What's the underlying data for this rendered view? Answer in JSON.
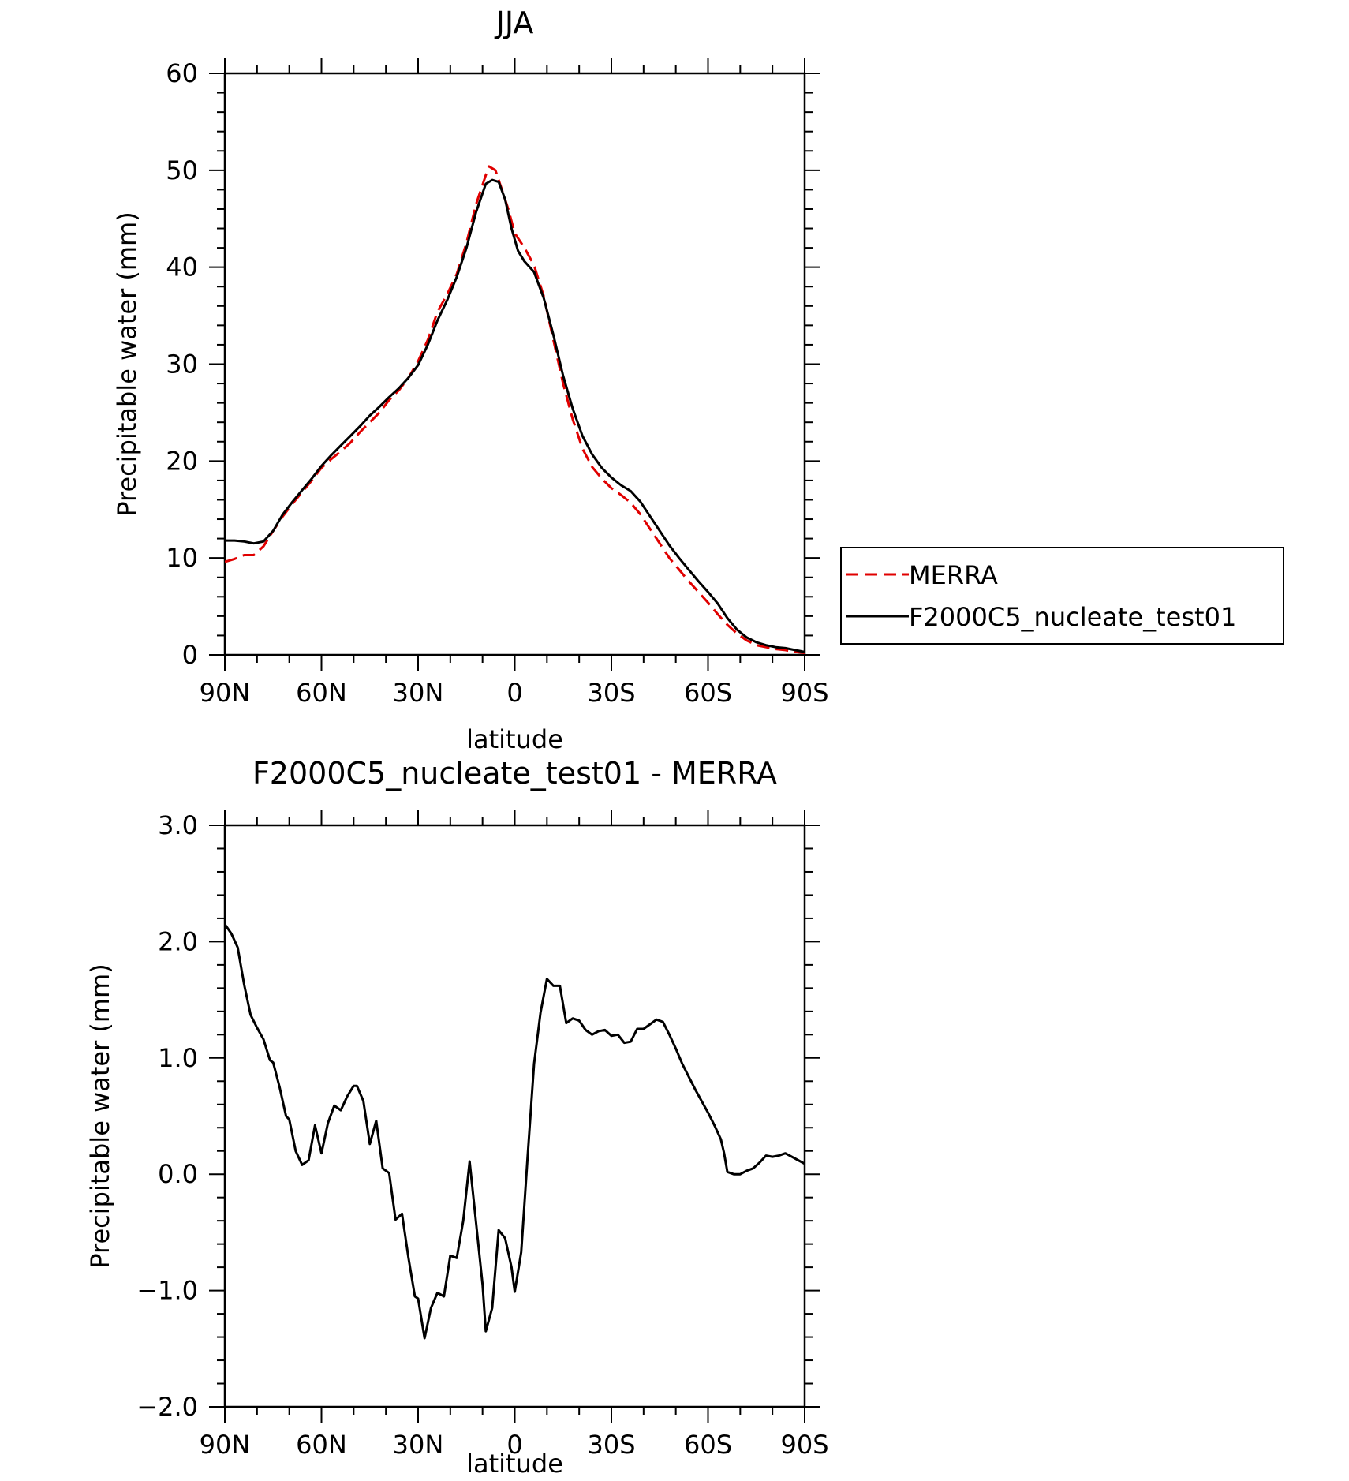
{
  "chart_data": [
    {
      "type": "line",
      "title": "JJA",
      "xlabel": "latitude",
      "ylabel": "Precipitable water (mm)",
      "xlim": [
        90,
        -90
      ],
      "ylim": [
        0,
        60
      ],
      "xticks": [
        {
          "value": 90,
          "label": "90N"
        },
        {
          "value": 60,
          "label": "60N"
        },
        {
          "value": 30,
          "label": "30N"
        },
        {
          "value": 0,
          "label": "0"
        },
        {
          "value": -30,
          "label": "30S"
        },
        {
          "value": -60,
          "label": "60S"
        },
        {
          "value": -90,
          "label": "90S"
        }
      ],
      "yticks": [
        {
          "value": 0,
          "label": "0"
        },
        {
          "value": 10,
          "label": "10"
        },
        {
          "value": 20,
          "label": "20"
        },
        {
          "value": 30,
          "label": "30"
        },
        {
          "value": 40,
          "label": "40"
        },
        {
          "value": 50,
          "label": "50"
        },
        {
          "value": 60,
          "label": "60"
        }
      ],
      "legend_position": "right",
      "series": [
        {
          "name": "MERRA",
          "color": "#e00000",
          "dash": "dashed",
          "points": [
            [
              90,
              9.6
            ],
            [
              87,
              9.9
            ],
            [
              84,
              10.3
            ],
            [
              81,
              10.3
            ],
            [
              78,
              11.2
            ],
            [
              75,
              12.8
            ],
            [
              72,
              14.3
            ],
            [
              69,
              15.6
            ],
            [
              66,
              16.8
            ],
            [
              63,
              18.0
            ],
            [
              60,
              19.3
            ],
            [
              57,
              20.2
            ],
            [
              54,
              21.0
            ],
            [
              51,
              21.9
            ],
            [
              48,
              23.0
            ],
            [
              45,
              24.0
            ],
            [
              42,
              25.0
            ],
            [
              39,
              26.3
            ],
            [
              36,
              27.3
            ],
            [
              33,
              28.6
            ],
            [
              30,
              30.3
            ],
            [
              27,
              32.5
            ],
            [
              24,
              35.4
            ],
            [
              21,
              37.2
            ],
            [
              18,
              39.3
            ],
            [
              15,
              42.5
            ],
            [
              12,
              46.5
            ],
            [
              9,
              49.5
            ],
            [
              8,
              50.4
            ],
            [
              6,
              50.0
            ],
            [
              4,
              48.0
            ],
            [
              2,
              46.0
            ],
            [
              0,
              43.5
            ],
            [
              -3,
              42.0
            ],
            [
              -6,
              40.2
            ],
            [
              -9,
              37.0
            ],
            [
              -12,
              32.5
            ],
            [
              -15,
              28.0
            ],
            [
              -18,
              24.3
            ],
            [
              -21,
              21.3
            ],
            [
              -24,
              19.4
            ],
            [
              -27,
              18.2
            ],
            [
              -30,
              17.2
            ],
            [
              -33,
              16.5
            ],
            [
              -36,
              15.7
            ],
            [
              -39,
              14.5
            ],
            [
              -42,
              13.0
            ],
            [
              -45,
              11.5
            ],
            [
              -48,
              10.0
            ],
            [
              -51,
              8.8
            ],
            [
              -54,
              7.6
            ],
            [
              -57,
              6.5
            ],
            [
              -60,
              5.4
            ],
            [
              -63,
              4.2
            ],
            [
              -66,
              3.1
            ],
            [
              -69,
              2.2
            ],
            [
              -72,
              1.5
            ],
            [
              -75,
              1.0
            ],
            [
              -78,
              0.8
            ],
            [
              -81,
              0.6
            ],
            [
              -84,
              0.5
            ],
            [
              -87,
              0.3
            ],
            [
              -90,
              0.2
            ]
          ]
        },
        {
          "name": "F2000C5_nucleate_test01",
          "color": "#000000",
          "dash": "solid",
          "points": [
            [
              90,
              11.8
            ],
            [
              87,
              11.8
            ],
            [
              84,
              11.7
            ],
            [
              81,
              11.5
            ],
            [
              78,
              11.7
            ],
            [
              75,
              12.8
            ],
            [
              72,
              14.5
            ],
            [
              69,
              15.8
            ],
            [
              66,
              17.0
            ],
            [
              63,
              18.2
            ],
            [
              60,
              19.5
            ],
            [
              57,
              20.6
            ],
            [
              54,
              21.6
            ],
            [
              51,
              22.6
            ],
            [
              48,
              23.6
            ],
            [
              45,
              24.7
            ],
            [
              42,
              25.6
            ],
            [
              39,
              26.6
            ],
            [
              36,
              27.5
            ],
            [
              33,
              28.6
            ],
            [
              30,
              29.9
            ],
            [
              27,
              32.0
            ],
            [
              24,
              34.5
            ],
            [
              21,
              36.6
            ],
            [
              18,
              39.0
            ],
            [
              15,
              42.0
            ],
            [
              12,
              45.7
            ],
            [
              9,
              48.6
            ],
            [
              7,
              49.0
            ],
            [
              5,
              48.8
            ],
            [
              3,
              47.0
            ],
            [
              1,
              44.0
            ],
            [
              -1,
              41.7
            ],
            [
              -3,
              40.6
            ],
            [
              -6,
              39.5
            ],
            [
              -9,
              36.8
            ],
            [
              -12,
              33.0
            ],
            [
              -15,
              28.8
            ],
            [
              -18,
              25.4
            ],
            [
              -21,
              22.6
            ],
            [
              -24,
              20.7
            ],
            [
              -27,
              19.3
            ],
            [
              -30,
              18.3
            ],
            [
              -33,
              17.5
            ],
            [
              -36,
              16.9
            ],
            [
              -39,
              15.8
            ],
            [
              -42,
              14.3
            ],
            [
              -45,
              12.8
            ],
            [
              -48,
              11.3
            ],
            [
              -51,
              10.0
            ],
            [
              -54,
              8.8
            ],
            [
              -57,
              7.6
            ],
            [
              -60,
              6.5
            ],
            [
              -63,
              5.3
            ],
            [
              -66,
              3.8
            ],
            [
              -69,
              2.6
            ],
            [
              -72,
              1.8
            ],
            [
              -75,
              1.3
            ],
            [
              -78,
              1.0
            ],
            [
              -81,
              0.8
            ],
            [
              -84,
              0.7
            ],
            [
              -87,
              0.5
            ],
            [
              -90,
              0.3
            ]
          ]
        }
      ]
    },
    {
      "type": "line",
      "title": "F2000C5_nucleate_test01 - MERRA",
      "xlabel": "latitude",
      "ylabel": "Precipitable water (mm)",
      "xlim": [
        90,
        -90
      ],
      "ylim": [
        -2.0,
        3.0
      ],
      "xticks": [
        {
          "value": 90,
          "label": "90N"
        },
        {
          "value": 60,
          "label": "60N"
        },
        {
          "value": 30,
          "label": "30N"
        },
        {
          "value": 0,
          "label": "0"
        },
        {
          "value": -30,
          "label": "30S"
        },
        {
          "value": -60,
          "label": "60S"
        },
        {
          "value": -90,
          "label": "90S"
        }
      ],
      "yticks": [
        {
          "value": -2.0,
          "label": "−2.0"
        },
        {
          "value": -1.0,
          "label": "−1.0"
        },
        {
          "value": 0.0,
          "label": "0.0"
        },
        {
          "value": 1.0,
          "label": "1.0"
        },
        {
          "value": 2.0,
          "label": "2.0"
        },
        {
          "value": 3.0,
          "label": "3.0"
        }
      ],
      "series": [
        {
          "color": "#000000",
          "dash": "solid",
          "points": [
            [
              90,
              2.15
            ],
            [
              88,
              2.07
            ],
            [
              86,
              1.95
            ],
            [
              84,
              1.63
            ],
            [
              82,
              1.37
            ],
            [
              80,
              1.26
            ],
            [
              78,
              1.16
            ],
            [
              76,
              0.98
            ],
            [
              75,
              0.96
            ],
            [
              73,
              0.75
            ],
            [
              71,
              0.5
            ],
            [
              70,
              0.47
            ],
            [
              68,
              0.2
            ],
            [
              66,
              0.08
            ],
            [
              64,
              0.12
            ],
            [
              62,
              0.42
            ],
            [
              60,
              0.18
            ],
            [
              58,
              0.44
            ],
            [
              56,
              0.59
            ],
            [
              54,
              0.55
            ],
            [
              52,
              0.67
            ],
            [
              50,
              0.76
            ],
            [
              49,
              0.76
            ],
            [
              47,
              0.63
            ],
            [
              45,
              0.26
            ],
            [
              43,
              0.46
            ],
            [
              41,
              0.05
            ],
            [
              39,
              0.01
            ],
            [
              37,
              -0.39
            ],
            [
              35,
              -0.34
            ],
            [
              33,
              -0.72
            ],
            [
              31,
              -1.05
            ],
            [
              30,
              -1.07
            ],
            [
              28,
              -1.41
            ],
            [
              26,
              -1.15
            ],
            [
              24,
              -1.02
            ],
            [
              22,
              -1.05
            ],
            [
              20,
              -0.7
            ],
            [
              18,
              -0.72
            ],
            [
              16,
              -0.4
            ],
            [
              14,
              0.11
            ],
            [
              12,
              -0.42
            ],
            [
              10,
              -0.95
            ],
            [
              9,
              -1.35
            ],
            [
              7,
              -1.15
            ],
            [
              5,
              -0.48
            ],
            [
              3,
              -0.55
            ],
            [
              1,
              -0.8
            ],
            [
              0,
              -1.01
            ],
            [
              -2,
              -0.67
            ],
            [
              -4,
              0.15
            ],
            [
              -6,
              0.95
            ],
            [
              -8,
              1.39
            ],
            [
              -10,
              1.68
            ],
            [
              -12,
              1.62
            ],
            [
              -14,
              1.62
            ],
            [
              -16,
              1.3
            ],
            [
              -18,
              1.34
            ],
            [
              -20,
              1.32
            ],
            [
              -22,
              1.24
            ],
            [
              -24,
              1.2
            ],
            [
              -26,
              1.23
            ],
            [
              -28,
              1.24
            ],
            [
              -30,
              1.19
            ],
            [
              -32,
              1.2
            ],
            [
              -34,
              1.13
            ],
            [
              -36,
              1.14
            ],
            [
              -38,
              1.25
            ],
            [
              -40,
              1.25
            ],
            [
              -42,
              1.29
            ],
            [
              -44,
              1.33
            ],
            [
              -46,
              1.31
            ],
            [
              -48,
              1.2
            ],
            [
              -50,
              1.08
            ],
            [
              -52,
              0.95
            ],
            [
              -54,
              0.84
            ],
            [
              -56,
              0.73
            ],
            [
              -58,
              0.63
            ],
            [
              -60,
              0.53
            ],
            [
              -62,
              0.42
            ],
            [
              -64,
              0.3
            ],
            [
              -65,
              0.18
            ],
            [
              -66,
              0.02
            ],
            [
              -68,
              0.0
            ],
            [
              -70,
              0.0
            ],
            [
              -72,
              0.03
            ],
            [
              -74,
              0.05
            ],
            [
              -76,
              0.1
            ],
            [
              -78,
              0.16
            ],
            [
              -80,
              0.15
            ],
            [
              -82,
              0.16
            ],
            [
              -84,
              0.18
            ],
            [
              -86,
              0.15
            ],
            [
              -88,
              0.12
            ],
            [
              -90,
              0.09
            ]
          ]
        }
      ]
    }
  ]
}
